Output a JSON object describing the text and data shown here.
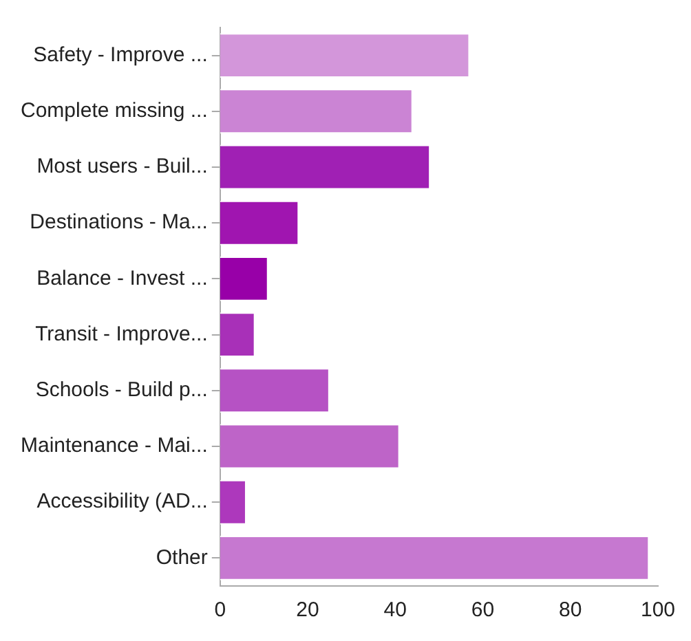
{
  "chart_data": {
    "type": "bar",
    "orientation": "horizontal",
    "categories": [
      "Safety - Improve ...",
      "Complete missing ...",
      "Most users - Buil...",
      "Destinations - Ma...",
      "Balance - Invest ...",
      "Transit - Improve...",
      "Schools - Build p...",
      "Maintenance - Mai...",
      "Accessibility (AD...",
      "Other"
    ],
    "values": [
      57,
      44,
      48,
      18,
      11,
      8,
      25,
      41,
      6,
      98
    ],
    "colors": [
      "#d396da",
      "#cb84d4",
      "#a020b4",
      "#a015b0",
      "#9800a8",
      "#a830b8",
      "#b652c4",
      "#be64c8",
      "#ad38bc",
      "#c678d0"
    ],
    "xlim": [
      0,
      100
    ],
    "xticks": [
      0,
      20,
      40,
      60,
      80,
      100
    ],
    "grid": false,
    "legend": false
  }
}
